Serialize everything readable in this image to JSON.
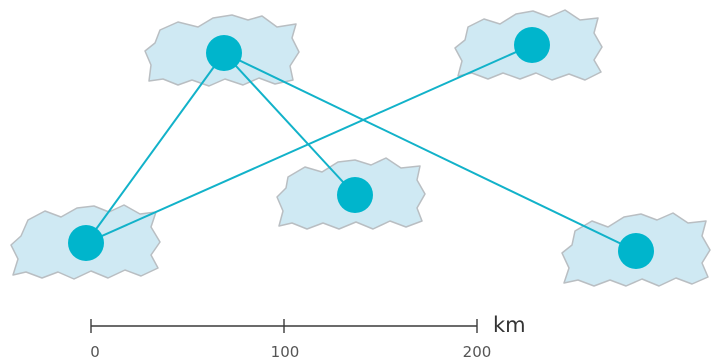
{
  "map": {
    "colors": {
      "land": "#cfe9f3",
      "land_outline": "#b9bec2",
      "route": "#12b2c9",
      "node": "#00b5cc"
    },
    "nodes": [
      {
        "id": "node-top-left"
      },
      {
        "id": "node-top-right"
      },
      {
        "id": "node-middle"
      },
      {
        "id": "node-bottom-left"
      },
      {
        "id": "node-bottom-right"
      }
    ],
    "connections": [
      [
        "node-top-left",
        "node-bottom-left"
      ],
      [
        "node-top-left",
        "node-middle"
      ],
      [
        "node-top-left",
        "node-bottom-right"
      ],
      [
        "node-bottom-left",
        "node-top-right"
      ]
    ]
  },
  "scale_bar": {
    "unit": "km",
    "ticks": [
      "0",
      "100",
      "200"
    ]
  }
}
